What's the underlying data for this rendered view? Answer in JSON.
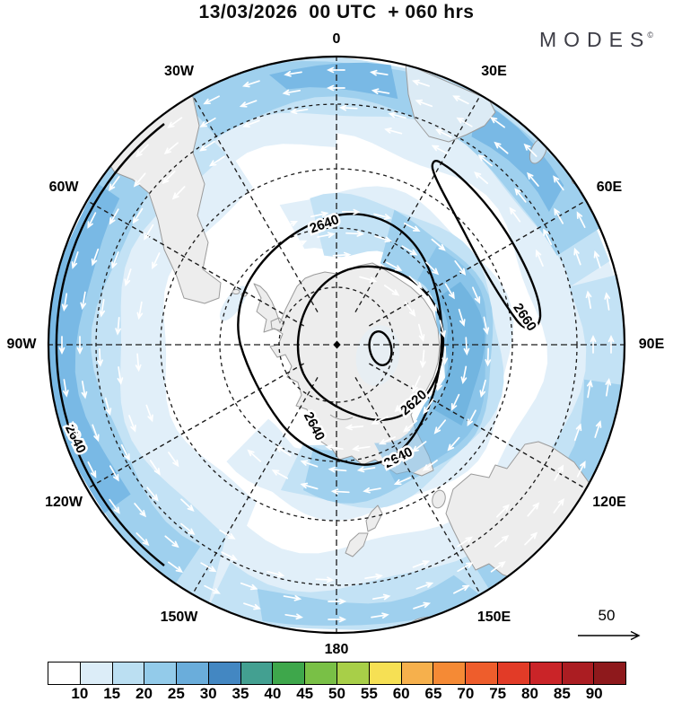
{
  "header": {
    "title": "13/03/2026  00 UTC  + 060 hrs",
    "logo": "MODES",
    "logo_mark": "©"
  },
  "map": {
    "longitude_labels": [
      {
        "label": "0",
        "angle": 0
      },
      {
        "label": "30E",
        "angle": 30
      },
      {
        "label": "60E",
        "angle": 60
      },
      {
        "label": "90E",
        "angle": 90
      },
      {
        "label": "120E",
        "angle": 120
      },
      {
        "label": "150E",
        "angle": 150
      },
      {
        "label": "180",
        "angle": 180
      },
      {
        "label": "150W",
        "angle": 210
      },
      {
        "label": "120W",
        "angle": 240
      },
      {
        "label": "90W",
        "angle": 270
      },
      {
        "label": "60W",
        "angle": 300
      },
      {
        "label": "30W",
        "angle": 330
      }
    ],
    "contour_labels": [
      "2640",
      "2640",
      "2640",
      "2640",
      "2620",
      "2660"
    ],
    "land_color": "#ededed",
    "coast_color": "#9b9b9b",
    "shading_colors": [
      "#e1eff9",
      "#c3e2f5",
      "#9fd0ee",
      "#79b9e5",
      "#5aa6d8"
    ],
    "arrow_color": "#ffffff"
  },
  "reference_vector": {
    "label": "50"
  },
  "colorbar": {
    "tick_labels": [
      "10",
      "15",
      "20",
      "25",
      "30",
      "35",
      "40",
      "45",
      "50",
      "55",
      "60",
      "65",
      "70",
      "75",
      "80",
      "85",
      "90"
    ],
    "colors": [
      "#ffffff",
      "#dcedf8",
      "#bbdff2",
      "#93cbea",
      "#6aaddb",
      "#4387c2",
      "#43a091",
      "#3ea74b",
      "#79c046",
      "#a8cf48",
      "#f6e054",
      "#f6b04c",
      "#f58a35",
      "#ee5d2c",
      "#e23b27",
      "#ca2428",
      "#ab1d22",
      "#8e191c"
    ]
  },
  "chart_data": {
    "type": "heatmap",
    "subtype": "polar-stereographic contour map with shaded wind speed and wind vectors",
    "title": "13/03/2026  00 UTC  + 060 hrs",
    "projection": "south polar stereographic, 0 deg at top, equator at rim",
    "contour_levels_labeled": [
      2620,
      2640,
      2660
    ],
    "contour_label_instances": [
      "2640",
      "2640",
      "2640",
      "2640",
      "2620",
      "2660"
    ],
    "shading_scale": {
      "tick_values": [
        10,
        15,
        20,
        25,
        30,
        35,
        40,
        45,
        50,
        55,
        60,
        65,
        70,
        75,
        80,
        85,
        90
      ],
      "n_cells": 18,
      "cell_colors": [
        "#ffffff",
        "#dcedf8",
        "#bbdff2",
        "#93cbea",
        "#6aaddb",
        "#4387c2",
        "#43a091",
        "#3ea74b",
        "#79c046",
        "#a8cf48",
        "#f6e054",
        "#f6b04c",
        "#f58a35",
        "#ee5d2c",
        "#e23b27",
        "#ca2428",
        "#ab1d22",
        "#8e191c"
      ],
      "shaded_range_on_map": "10-30"
    },
    "longitude_ticks": [
      "0",
      "30E",
      "60E",
      "90E",
      "120E",
      "150E",
      "180",
      "150W",
      "120W",
      "90W",
      "60W",
      "30W"
    ],
    "latitude_circles": 4,
    "wind_reference_value": 50,
    "flow_pattern": {
      "outer_band": "counterclockwise (easterly) ring near map edge",
      "inner_band": "clockwise (westerly) ring around pole east of Antarctica"
    },
    "branding": "MODES©"
  }
}
